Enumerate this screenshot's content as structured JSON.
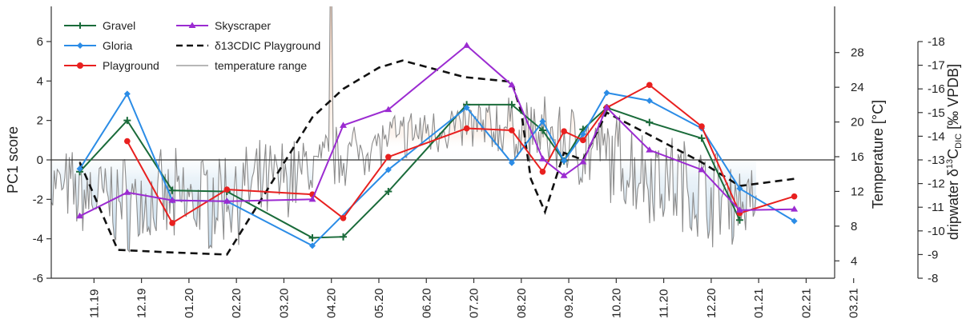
{
  "chart_data": {
    "type": "line",
    "x_categories": [
      "11.19",
      "12.19",
      "01.20",
      "02.20",
      "03.20",
      "04.20",
      "05.20",
      "06.20",
      "07.20",
      "08.20",
      "09.20",
      "10.20",
      "11.20",
      "12.20",
      "01.21",
      "02.21",
      "03.21"
    ],
    "left_axis": {
      "label": "PC1 score",
      "range": [
        -6,
        6
      ],
      "ticks": [
        "-6",
        "-4",
        "-2",
        "0",
        "2",
        "4",
        "6"
      ]
    },
    "right_axis_1": {
      "label": "Temperature [°C]",
      "range": [
        2,
        30
      ],
      "ticks": [
        "4",
        "8",
        "12",
        "16",
        "20",
        "24",
        "28"
      ]
    },
    "right_axis_2": {
      "label_prefix": "dripwater δ",
      "label_sup": "13",
      "label_mid": "C",
      "label_sub": "DIC",
      "label_suffix": " [‰ VPDB]",
      "range": [
        -8,
        -18
      ],
      "ticks": [
        "-8",
        "-9",
        "-10",
        "-11",
        "-12",
        "-13",
        "-14",
        "-15",
        "-16",
        "-17",
        "-18"
      ]
    },
    "legend": {
      "gravel": "Gravel",
      "gloria": "Gloria",
      "playground": "Playground",
      "skyscraper": "Skyscraper",
      "d13c": "δ13CDIC Playground",
      "temp": "temperature range"
    },
    "colors": {
      "gravel": "#1a6b3a",
      "gloria": "#2b8ce6",
      "playground": "#e8201f",
      "skyscraper": "#9b2bd1",
      "d13c": "#111111",
      "temp": "#8c8c8c"
    },
    "series": [
      {
        "name": "Gravel",
        "key": "gravel",
        "marker": "plus",
        "points": [
          [
            -0.3,
            -0.6
          ],
          [
            0.7,
            2.0
          ],
          [
            1.65,
            -1.55
          ],
          [
            2.8,
            -1.6
          ],
          [
            4.6,
            -3.95
          ],
          [
            5.25,
            -3.9
          ],
          [
            6.2,
            -1.6
          ],
          [
            7.85,
            2.8
          ],
          [
            8.8,
            2.8
          ],
          [
            9.45,
            1.5
          ],
          [
            9.9,
            -0.05
          ],
          [
            10.3,
            1.55
          ],
          [
            10.8,
            2.65
          ],
          [
            11.7,
            1.9
          ],
          [
            12.8,
            1.1
          ],
          [
            13.6,
            -3.05
          ]
        ]
      },
      {
        "name": "Gloria",
        "key": "gloria",
        "marker": "diamond",
        "points": [
          [
            -0.3,
            -0.45
          ],
          [
            0.7,
            3.35
          ],
          [
            1.65,
            -2.05
          ],
          [
            2.8,
            -2.1
          ],
          [
            4.6,
            -4.35
          ],
          [
            6.2,
            -0.5
          ],
          [
            7.85,
            2.65
          ],
          [
            8.8,
            -0.15
          ],
          [
            9.45,
            1.95
          ],
          [
            9.9,
            -0.05
          ],
          [
            10.3,
            1.3
          ],
          [
            10.8,
            3.4
          ],
          [
            11.7,
            3.0
          ],
          [
            12.8,
            1.6
          ],
          [
            13.6,
            -1.45
          ],
          [
            14.75,
            -3.1
          ]
        ]
      },
      {
        "name": "Playground",
        "key": "playground",
        "marker": "circle",
        "points": [
          [
            0.7,
            0.95
          ],
          [
            1.65,
            -3.2
          ],
          [
            2.8,
            -1.5
          ],
          [
            4.6,
            -1.75
          ],
          [
            5.25,
            -2.95
          ],
          [
            6.2,
            0.15
          ],
          [
            7.85,
            1.6
          ],
          [
            8.8,
            1.5
          ],
          [
            9.45,
            -0.6
          ],
          [
            9.9,
            1.45
          ],
          [
            10.3,
            1.0
          ],
          [
            10.8,
            2.65
          ],
          [
            11.7,
            3.8
          ],
          [
            12.8,
            1.7
          ],
          [
            13.6,
            -2.7
          ],
          [
            14.75,
            -1.85
          ]
        ]
      },
      {
        "name": "Skyscraper",
        "key": "skyscraper",
        "marker": "triangle",
        "points": [
          [
            -0.3,
            -2.85
          ],
          [
            0.7,
            -1.65
          ],
          [
            1.65,
            -2.05
          ],
          [
            2.8,
            -2.1
          ],
          [
            4.6,
            -2.0
          ],
          [
            5.25,
            1.75
          ],
          [
            6.2,
            2.55
          ],
          [
            7.85,
            5.8
          ],
          [
            8.8,
            3.8
          ],
          [
            9.45,
            0.05
          ],
          [
            9.9,
            -0.8
          ],
          [
            10.3,
            -0.1
          ],
          [
            10.8,
            2.65
          ],
          [
            11.7,
            0.5
          ],
          [
            12.8,
            -0.5
          ],
          [
            13.6,
            -2.55
          ],
          [
            14.75,
            -2.5
          ]
        ]
      }
    ],
    "d13c_playground": [
      [
        -0.3,
        -12.9
      ],
      [
        0.5,
        -9.2
      ],
      [
        1.5,
        -9.1
      ],
      [
        2.8,
        -9.0
      ],
      [
        4.6,
        -14.8
      ],
      [
        5.25,
        -16.0
      ],
      [
        6.0,
        -16.9
      ],
      [
        6.5,
        -17.2
      ],
      [
        7.8,
        -16.5
      ],
      [
        8.8,
        -16.3
      ],
      [
        9.0,
        -15.0
      ],
      [
        9.2,
        -12.2
      ],
      [
        9.5,
        -10.8
      ],
      [
        9.9,
        -13.3
      ],
      [
        10.3,
        -13.0
      ],
      [
        10.8,
        -15.0
      ],
      [
        12.8,
        -12.9
      ],
      [
        13.6,
        -11.9
      ],
      [
        14.75,
        -12.2
      ]
    ]
  }
}
